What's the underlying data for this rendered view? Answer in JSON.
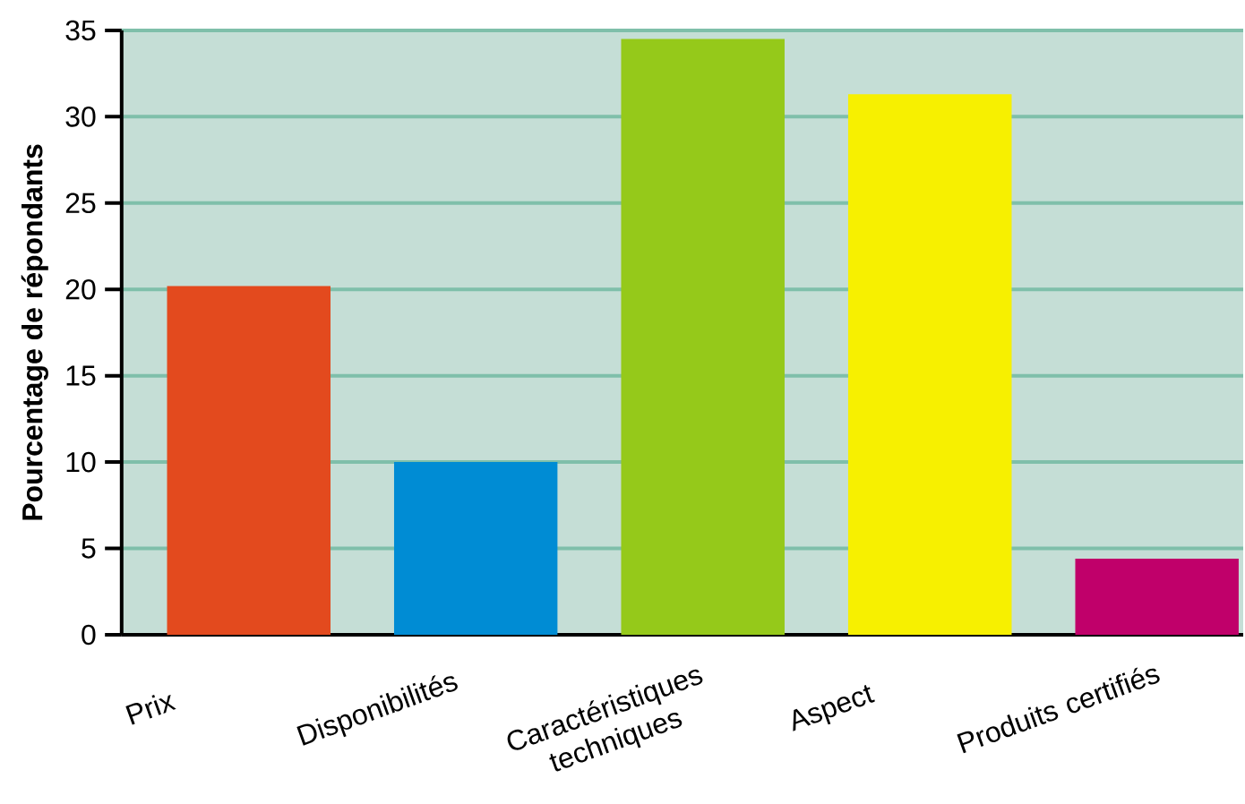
{
  "chart_data": {
    "type": "bar",
    "ylabel": "Pourcentage de répondants",
    "categories": [
      "Prix",
      "Disponibilités",
      "Caractéristiques techniques",
      "Aspect",
      "Produits certifiés"
    ],
    "values": [
      20.2,
      10.0,
      34.5,
      31.3,
      4.4
    ],
    "colors": [
      "#e34a1e",
      "#008cd4",
      "#95c91a",
      "#f7f000",
      "#c0006a"
    ],
    "ylim": [
      0,
      35
    ],
    "yticks": [
      0,
      5,
      10,
      15,
      20,
      25,
      30,
      35
    ],
    "grid": "y"
  }
}
